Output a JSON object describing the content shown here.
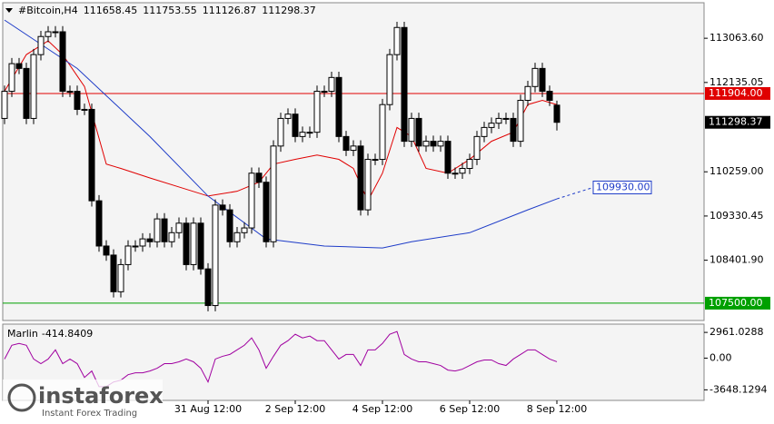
{
  "chart_data": [
    {
      "type": "candlestick",
      "title": "#Bitcoin,H4",
      "categories": [
        null,
        null,
        null,
        null,
        null,
        null,
        null,
        null,
        null,
        null,
        null,
        null,
        null,
        null,
        null,
        null,
        null,
        null,
        null,
        null,
        null,
        null,
        null,
        null,
        null,
        null,
        null,
        null,
        "31 Aug 12:00",
        null,
        null,
        null,
        null,
        null,
        null,
        null,
        null,
        null,
        null,
        null,
        "2 Sep 12:00",
        null,
        null,
        null,
        null,
        null,
        null,
        null,
        null,
        null,
        null,
        null,
        "4 Sep 12:00",
        null,
        null,
        null,
        null,
        null,
        null,
        null,
        null,
        null,
        null,
        null,
        "6 Sep 12:00",
        null,
        null,
        null,
        null,
        null,
        null,
        null,
        null,
        null,
        null,
        null,
        "8 Sep 12:00"
      ],
      "open": [
        111380,
        111950,
        112530,
        112430,
        111380,
        112720,
        113100,
        113200,
        113200,
        111950,
        111950,
        111570,
        111570,
        109650,
        108700,
        108510,
        107740,
        108310,
        108700,
        108700,
        108850,
        108790,
        109270,
        108790,
        108980,
        109180,
        108310,
        109180,
        108220,
        107450,
        109560,
        109460,
        108790,
        108980,
        109080,
        110230,
        110040,
        108790,
        110800,
        111380,
        111470,
        111000,
        111090,
        111090,
        111950,
        111950,
        112240,
        111000,
        110710,
        110800,
        109460,
        110520,
        110520,
        111670,
        112720,
        113290,
        110900,
        111380,
        110800,
        110900,
        110800,
        110900,
        110230,
        110230,
        110330,
        110520,
        111000,
        111190,
        111280,
        111380,
        111380,
        110900,
        111760,
        112050,
        112430,
        111950,
        111658.45
      ],
      "high": [
        112070,
        112650,
        112650,
        112550,
        112840,
        113220,
        113320,
        113320,
        113320,
        112070,
        112070,
        111690,
        111690,
        109770,
        108820,
        108630,
        108430,
        108820,
        108820,
        108970,
        108970,
        109390,
        109390,
        109100,
        109300,
        109300,
        109300,
        109300,
        108340,
        109680,
        109680,
        109580,
        109100,
        109200,
        110350,
        110350,
        110160,
        110920,
        111500,
        111590,
        111590,
        111210,
        111210,
        112070,
        112070,
        112360,
        112360,
        111120,
        110920,
        110920,
        110640,
        110640,
        111790,
        112840,
        113410,
        113410,
        111500,
        111500,
        111020,
        111020,
        111020,
        111020,
        110350,
        110450,
        110640,
        111120,
        111310,
        111400,
        111500,
        111500,
        111500,
        111880,
        112170,
        112550,
        112550,
        112070,
        111753.55
      ],
      "low": [
        111260,
        111830,
        112310,
        111260,
        111260,
        112600,
        112980,
        113080,
        111830,
        111830,
        111450,
        111450,
        109530,
        108580,
        108390,
        107620,
        107620,
        108190,
        108580,
        108580,
        108670,
        108670,
        108670,
        108670,
        108860,
        108190,
        108190,
        108100,
        107330,
        107330,
        109340,
        108670,
        108670,
        108860,
        108960,
        109920,
        108670,
        108670,
        110680,
        111260,
        110880,
        110880,
        110970,
        110970,
        111830,
        111830,
        110880,
        110590,
        110590,
        109340,
        109340,
        110400,
        110400,
        111550,
        112600,
        110780,
        110780,
        110680,
        110680,
        110680,
        110680,
        110110,
        110110,
        110110,
        110210,
        110400,
        110880,
        111070,
        111160,
        111260,
        110780,
        110780,
        111640,
        111930,
        111830,
        111640,
        111126.87
      ],
      "close": [
        111950,
        112530,
        112430,
        111380,
        112720,
        113100,
        113200,
        113200,
        111950,
        111950,
        111570,
        111570,
        109650,
        108700,
        108510,
        107740,
        108310,
        108700,
        108700,
        108850,
        108790,
        109270,
        108790,
        108980,
        109180,
        108310,
        109180,
        108220,
        107450,
        109560,
        109460,
        108790,
        108980,
        109080,
        110230,
        110040,
        108790,
        110800,
        111380,
        111470,
        111000,
        111090,
        111090,
        111950,
        111950,
        112240,
        111000,
        110710,
        110800,
        109460,
        110520,
        110520,
        111670,
        112720,
        113290,
        110900,
        111380,
        110800,
        110900,
        110800,
        110900,
        110230,
        110230,
        110330,
        110520,
        111000,
        111190,
        111280,
        111380,
        111380,
        110900,
        111760,
        112050,
        112430,
        111950,
        111760,
        111298.37
      ],
      "up_color": "#ffffff",
      "down_color": "#000000",
      "ylim": [
        107136,
        113810
      ],
      "yticks": [
        {
          "value": 113063.6,
          "label": "113063.60"
        },
        {
          "value": 112135.05,
          "label": "112135.05"
        },
        {
          "value": 110259,
          "label": "110259.00"
        },
        {
          "value": 109330.45,
          "label": "109330.45"
        },
        {
          "value": 108401.9,
          "label": "108401.90"
        }
      ],
      "hlines": [
        {
          "value": 111904,
          "label": "111904.00",
          "color": "#e00000"
        },
        {
          "value": 107500,
          "label": "107500.00",
          "color": "#00a000"
        }
      ],
      "series": [
        {
          "color": "#e00000",
          "x": [
            0,
            3,
            6,
            8,
            11,
            14,
            16,
            20,
            24,
            28,
            32,
            35,
            37,
            40,
            43,
            46,
            48,
            50,
            52,
            54,
            56,
            58,
            61,
            64,
            67,
            70,
            72,
            74,
            76
          ],
          "values": [
            111950,
            112720,
            113010,
            112720,
            112050,
            110420,
            110330,
            110130,
            109940,
            109750,
            109850,
            110040,
            110420,
            110520,
            110610,
            110520,
            110330,
            109650,
            110230,
            111190,
            111000,
            110330,
            110230,
            110520,
            110900,
            111090,
            111670,
            111760,
            111670
          ]
        },
        {
          "color": "#1e3cc8",
          "x": [
            0,
            10,
            20,
            28,
            36,
            44,
            52,
            56,
            64,
            72,
            76
          ],
          "values": [
            113445,
            112430,
            111000,
            109750,
            108850,
            108700,
            108660,
            108790,
            108980,
            109460,
            109690
          ]
        },
        {
          "color": "#1e3cc8",
          "dashed": true,
          "x": [
            76,
            81
          ],
          "values": [
            109690,
            109930
          ],
          "end_label": "109930.00"
        }
      ]
    },
    {
      "type": "line",
      "title": "Marlin",
      "color": "#a000a0",
      "values": [
        -106,
        1481,
        1692,
        1481,
        -106,
        -635,
        -106,
        952,
        -635,
        -106,
        -635,
        -2221,
        -1481,
        -3278,
        -3278,
        -2750,
        -2538,
        -1904,
        -1692,
        -1692,
        -1481,
        -1163,
        -635,
        -635,
        -423,
        -106,
        -423,
        -1163,
        -2750,
        -106,
        212,
        423,
        952,
        1481,
        2327,
        952,
        -1163,
        212,
        1481,
        2009,
        2750,
        2327,
        2538,
        2009,
        2009,
        952,
        -106,
        423,
        423,
        -846,
        952,
        952,
        1692,
        2750,
        3066,
        423,
        -106,
        -423,
        -423,
        -635,
        -846,
        -1375,
        -1481,
        -1269,
        -846,
        -423,
        -212,
        -212,
        -635,
        -846,
        -106,
        423,
        952,
        952,
        423,
        -106,
        -414.8409
      ],
      "ylim": [
        -4865,
        3913
      ],
      "yticks": [
        {
          "value": 2961.0288,
          "label": "2961.0288"
        },
        {
          "value": 0,
          "label": "0.00"
        },
        {
          "value": -3648.1294,
          "label": "-3648.1294"
        }
      ]
    }
  ],
  "watermark": {
    "brand": "instaforex",
    "tagline": "Instant Forex Trading"
  }
}
